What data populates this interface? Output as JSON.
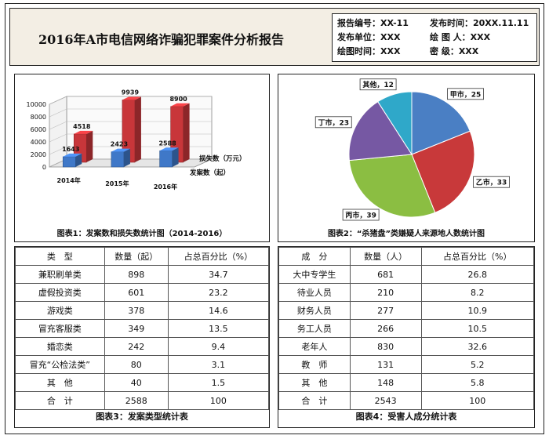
{
  "header": {
    "title": "2016年A市电信网络诈骗犯罪案件分析报告",
    "meta": [
      [
        "报告编号：XX-11",
        "发布时间：20XX.11.11"
      ],
      [
        "发布单位：XXX",
        "绘 图 人：XXX"
      ],
      [
        "绘图时间：XXX",
        "密    级：XXX"
      ]
    ]
  },
  "chart1_caption": "图表1：发案数和损失数统计图（2014-2016）",
  "chart2_caption": "图表2：“杀猪盘”类嫌疑人来源地人数统计图",
  "chart_data": [
    {
      "type": "bar",
      "categories": [
        "2014年",
        "2015年",
        "2016年"
      ],
      "series": [
        {
          "name": "发案数（起）",
          "values": [
            1643,
            2423,
            2588
          ],
          "color": "#3f78c8"
        },
        {
          "name": "损失数（万元）",
          "values": [
            4518,
            9939,
            8900
          ],
          "color": "#c8363a"
        }
      ],
      "yticks": [
        0,
        2000,
        4000,
        6000,
        8000,
        10000
      ],
      "ylim": [
        0,
        10000
      ]
    },
    {
      "type": "pie",
      "slices": [
        {
          "label": "甲市",
          "value": 25,
          "color": "#4a7fc4"
        },
        {
          "label": "乙市",
          "value": 33,
          "color": "#c8393a"
        },
        {
          "label": "丙市",
          "value": 39,
          "color": "#8bbe42"
        },
        {
          "label": "丁市",
          "value": 23,
          "color": "#7658a3"
        },
        {
          "label": "其他",
          "value": 12,
          "color": "#2fa8c9"
        }
      ]
    }
  ],
  "table1": {
    "headers": [
      "类　型",
      "数量（起）",
      "占总百分比（%）"
    ],
    "rows": [
      [
        "兼职刷单类",
        "898",
        "34.7"
      ],
      [
        "虚假投资类",
        "601",
        "23.2"
      ],
      [
        "游戏类",
        "378",
        "14.6"
      ],
      [
        "冒充客服类",
        "349",
        "13.5"
      ],
      [
        "婚恋类",
        "242",
        "9.4"
      ],
      [
        "冒充“公检法类”",
        "80",
        "3.1"
      ],
      [
        "其　他",
        "40",
        "1.5"
      ],
      [
        "合　计",
        "2588",
        "100"
      ]
    ],
    "caption": "图表3：发案类型统计表"
  },
  "table2": {
    "headers": [
      "成　分",
      "数量（人）",
      "占总百分比（%）"
    ],
    "rows": [
      [
        "大中专学生",
        "681",
        "26.8"
      ],
      [
        "待业人员",
        "210",
        "8.2"
      ],
      [
        "财务人员",
        "277",
        "10.9"
      ],
      [
        "务工人员",
        "266",
        "10.5"
      ],
      [
        "老年人",
        "830",
        "32.6"
      ],
      [
        "教　师",
        "131",
        "5.2"
      ],
      [
        "其　他",
        "148",
        "5.8"
      ],
      [
        "合　计",
        "2543",
        "100"
      ]
    ],
    "caption": "图表4：受害人成分统计表"
  }
}
